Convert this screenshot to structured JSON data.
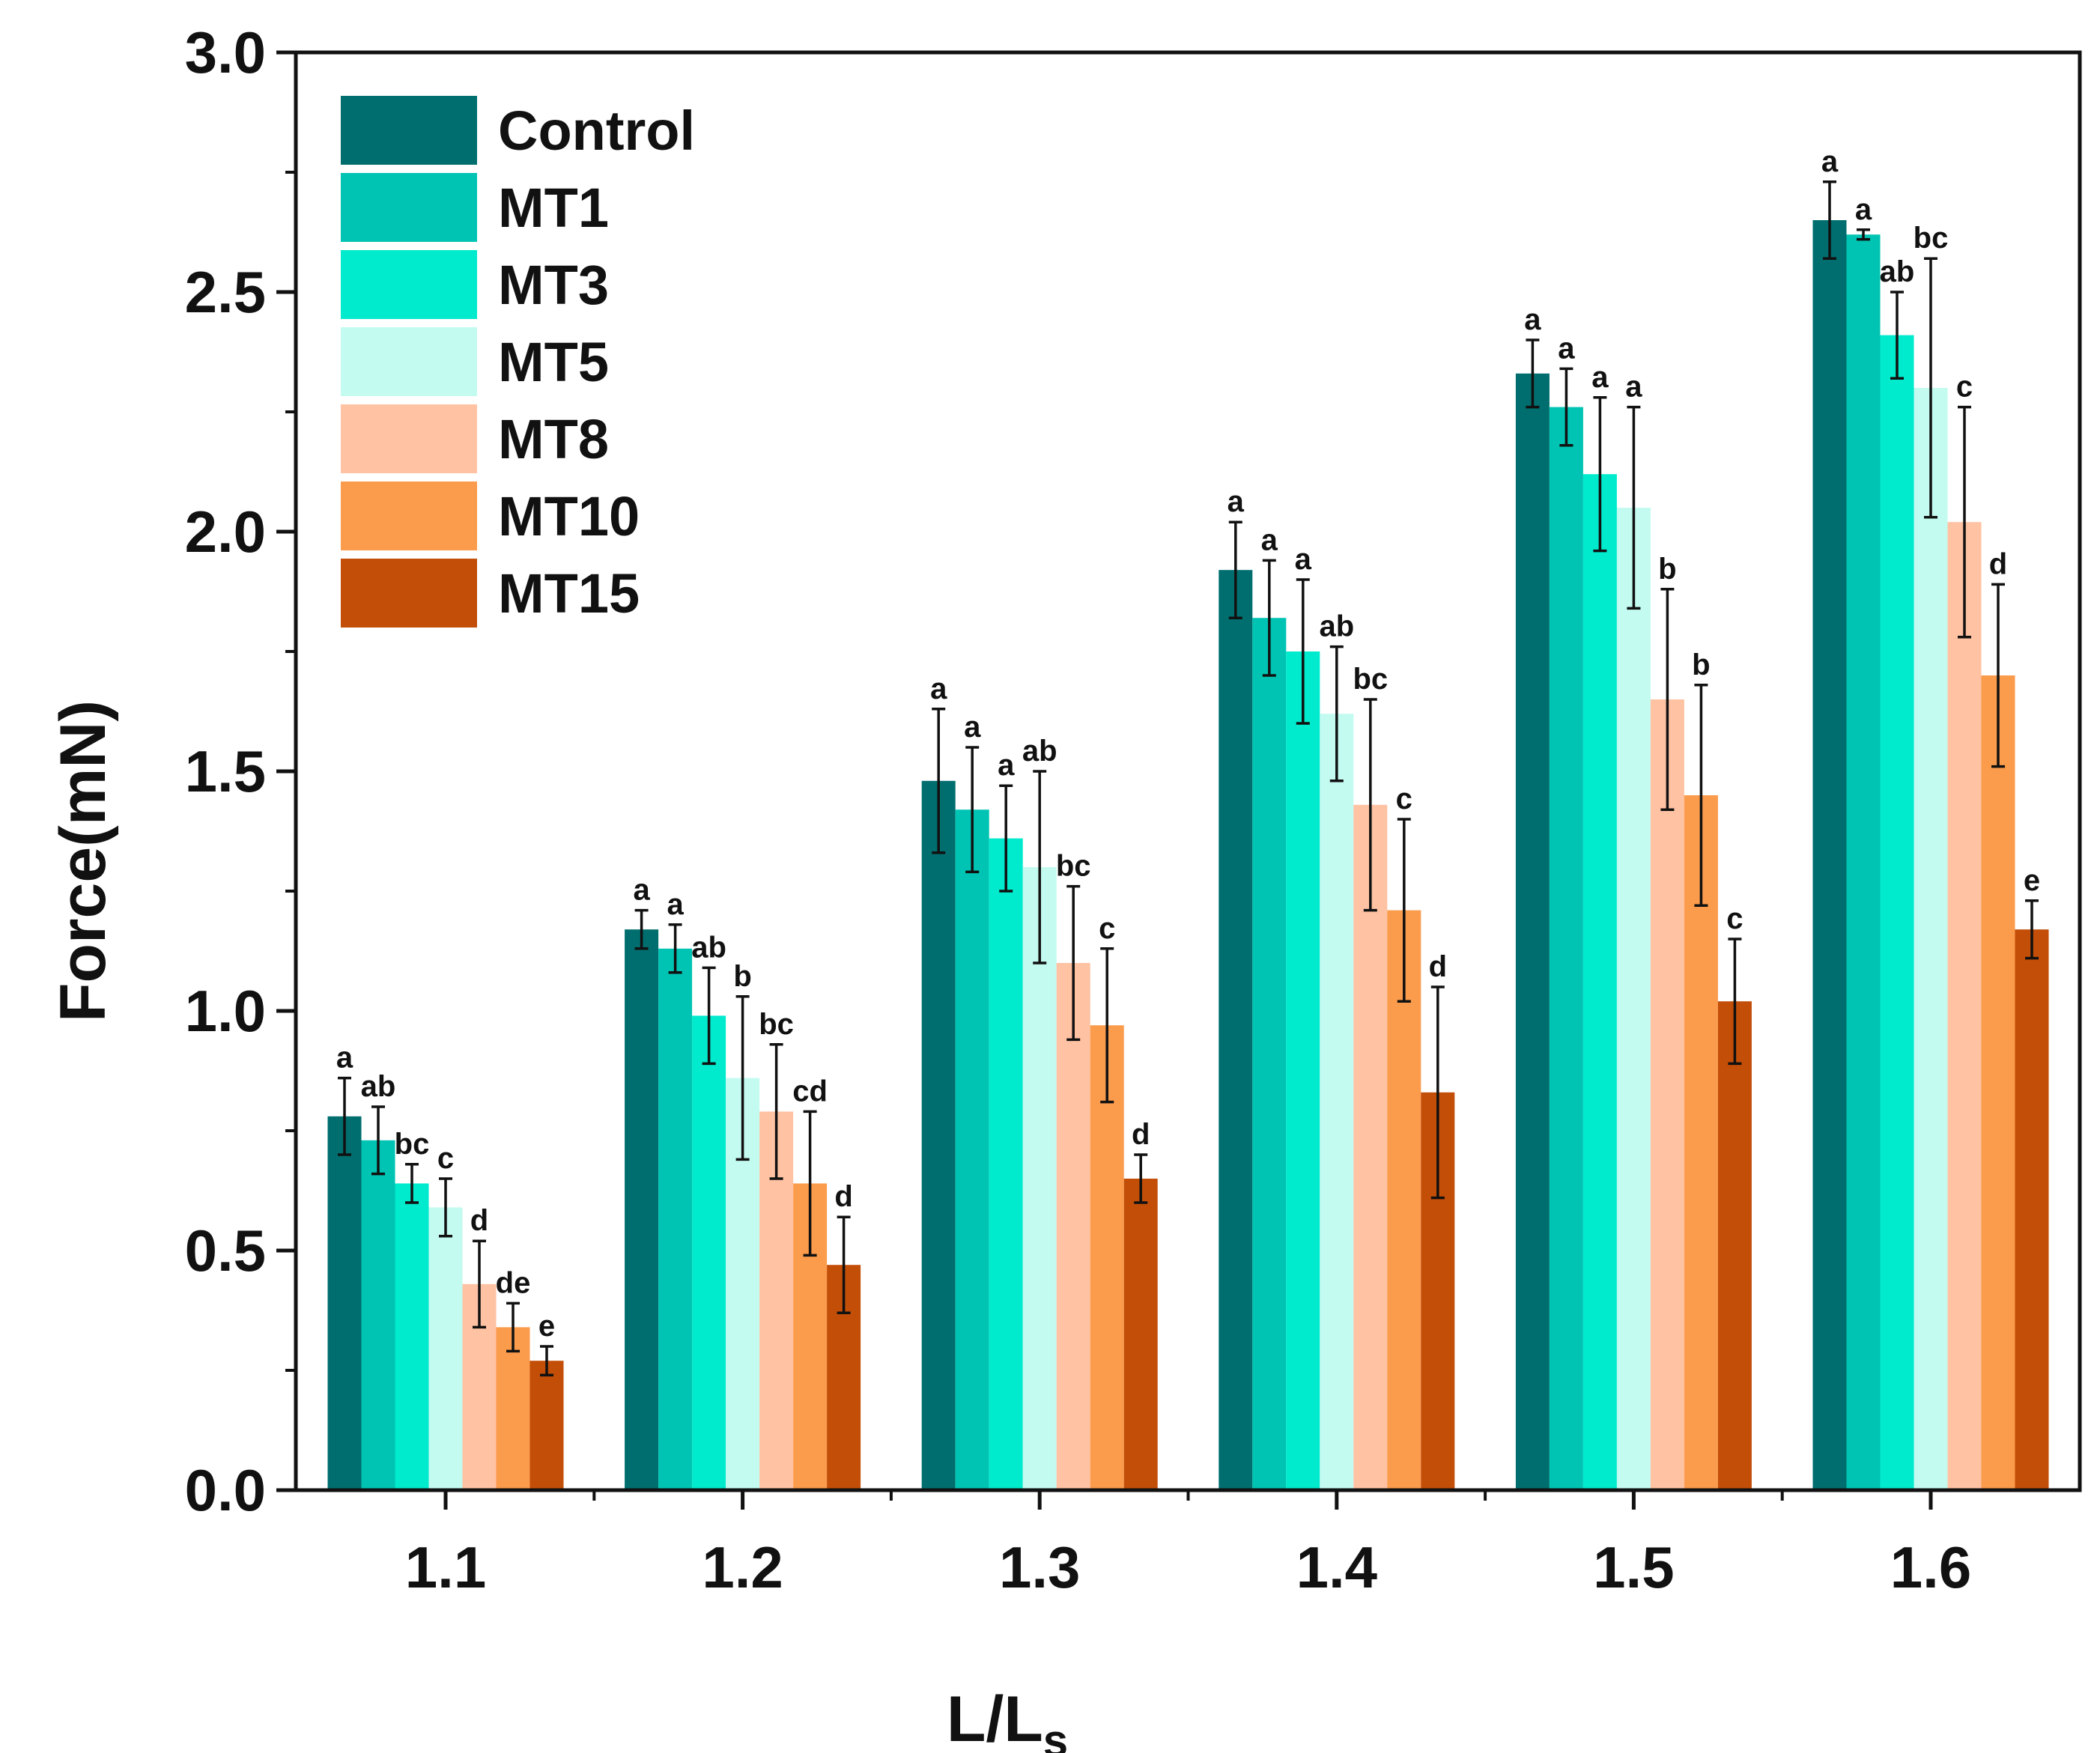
{
  "chart_data": {
    "type": "bar",
    "title": "",
    "xlabel_main": "L/L",
    "xlabel_sub": "s",
    "ylabel": "Force(mN)",
    "ylim": [
      0,
      3.0
    ],
    "yticks": [
      "0.0",
      "0.5",
      "1.0",
      "1.5",
      "2.0",
      "2.5",
      "3.0"
    ],
    "categories": [
      "1.1",
      "1.2",
      "1.3",
      "1.4",
      "1.5",
      "1.6"
    ],
    "legend_position": "top-left",
    "series": [
      {
        "name": "Control",
        "color": "#006e6e",
        "values": [
          0.78,
          1.17,
          1.48,
          1.92,
          2.33,
          2.65
        ],
        "errors": [
          0.08,
          0.04,
          0.15,
          0.1,
          0.07,
          0.08
        ],
        "letters": [
          "a",
          "a",
          "a",
          "a",
          "a",
          "a"
        ]
      },
      {
        "name": "MT1",
        "color": "#00c4b3",
        "values": [
          0.73,
          1.13,
          1.42,
          1.82,
          2.26,
          2.62
        ],
        "errors": [
          0.07,
          0.05,
          0.13,
          0.12,
          0.08,
          0.01
        ],
        "letters": [
          "ab",
          "a",
          "a",
          "a",
          "a",
          "a"
        ]
      },
      {
        "name": "MT3",
        "color": "#00eacd",
        "values": [
          0.64,
          0.99,
          1.36,
          1.75,
          2.12,
          2.41
        ],
        "errors": [
          0.04,
          0.1,
          0.11,
          0.15,
          0.16,
          0.09
        ],
        "letters": [
          "bc",
          "ab",
          "a",
          "a",
          "a",
          "ab"
        ]
      },
      {
        "name": "MT5",
        "color": "#c3fbf1",
        "values": [
          0.59,
          0.86,
          1.3,
          1.62,
          2.05,
          2.3
        ],
        "errors": [
          0.06,
          0.17,
          0.2,
          0.14,
          0.21,
          0.27
        ],
        "letters": [
          "c",
          "b",
          "ab",
          "ab",
          "a",
          "bc"
        ]
      },
      {
        "name": "MT8",
        "color": "#ffc2a2",
        "values": [
          0.43,
          0.79,
          1.1,
          1.43,
          1.65,
          2.02
        ],
        "errors": [
          0.09,
          0.14,
          0.16,
          0.22,
          0.23,
          0.24
        ],
        "letters": [
          "d",
          "bc",
          "bc",
          "bc",
          "b",
          "c"
        ]
      },
      {
        "name": "MT10",
        "color": "#fb9b4c",
        "values": [
          0.34,
          0.64,
          0.97,
          1.21,
          1.45,
          1.7
        ],
        "errors": [
          0.05,
          0.15,
          0.16,
          0.19,
          0.23,
          0.19
        ],
        "letters": [
          "de",
          "cd",
          "c",
          "c",
          "b",
          "d"
        ]
      },
      {
        "name": "MT15",
        "color": "#c34e08",
        "values": [
          0.27,
          0.47,
          0.65,
          0.83,
          1.02,
          1.17
        ],
        "errors": [
          0.03,
          0.1,
          0.05,
          0.22,
          0.13,
          0.06
        ],
        "letters": [
          "e",
          "d",
          "d",
          "d",
          "c",
          "e"
        ]
      }
    ]
  }
}
